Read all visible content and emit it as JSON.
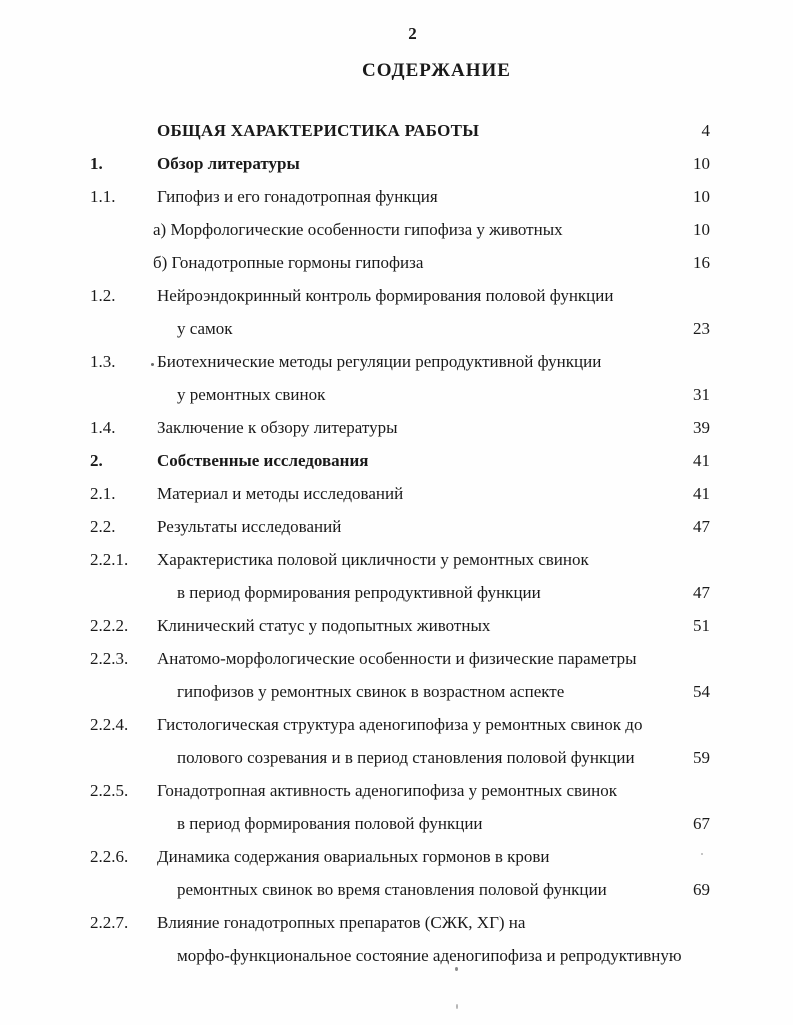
{
  "page": {
    "number": "2",
    "title": "СОДЕРЖАНИЕ"
  },
  "toc": {
    "entries": [
      {
        "num": "",
        "lines": [
          "ОБЩАЯ ХАРАКТЕРИСТИКА РАБОТЫ"
        ],
        "page": "4",
        "style": "caps"
      },
      {
        "num": "1.",
        "lines": [
          "Обзор литературы"
        ],
        "page": "10",
        "style": "bold"
      },
      {
        "num": "1.1.",
        "lines": [
          "Гипофиз и его гонадотропная функция"
        ],
        "page": "10",
        "style": ""
      },
      {
        "num": "",
        "lines": [
          "а) Морфологические особенности гипофиза у животных"
        ],
        "page": "10",
        "style": "sub"
      },
      {
        "num": "",
        "lines": [
          "б) Гонадотропные гормоны гипофиза"
        ],
        "page": "16",
        "style": "sub"
      },
      {
        "num": "1.2.",
        "lines": [
          "Нейроэндокринный контроль формирования половой функции",
          "у самок"
        ],
        "page": "23",
        "style": ""
      },
      {
        "num": "1.3.",
        "lines": [
          "Биотехнические методы регуляции репродуктивной функции",
          "у ремонтных свинок"
        ],
        "page": "31",
        "style": ""
      },
      {
        "num": "1.4.",
        "lines": [
          "Заключение к обзору литературы"
        ],
        "page": "39",
        "style": ""
      },
      {
        "num": "2.",
        "lines": [
          "Собственные исследования"
        ],
        "page": "41",
        "style": "bold"
      },
      {
        "num": "2.1.",
        "lines": [
          "Материал и методы исследований"
        ],
        "page": "41",
        "style": ""
      },
      {
        "num": "2.2.",
        "lines": [
          "Результаты исследований"
        ],
        "page": "47",
        "style": ""
      },
      {
        "num": "2.2.1.",
        "lines": [
          "Характеристика половой цикличности у ремонтных свинок",
          "в период формирования репродуктивной функции"
        ],
        "page": "47",
        "style": ""
      },
      {
        "num": "2.2.2.",
        "lines": [
          "Клинический статус у подопытных животных"
        ],
        "page": "51",
        "style": ""
      },
      {
        "num": "2.2.3.",
        "lines": [
          "Анатомо-морфологические особенности и физические параметры",
          "гипофизов у ремонтных свинок в возрастном аспекте"
        ],
        "page": "54",
        "style": ""
      },
      {
        "num": "2.2.4.",
        "lines": [
          "Гистологическая структура аденогипофиза у ремонтных свинок до",
          "полового созревания и в период становления половой функции"
        ],
        "page": "59",
        "style": ""
      },
      {
        "num": "2.2.5.",
        "lines": [
          "Гонадотропная активность аденогипофиза у ремонтных свинок",
          "в период формирования половой функции"
        ],
        "page": "67",
        "style": ""
      },
      {
        "num": "2.2.6.",
        "lines": [
          "Динамика содержания овариальных гормонов в крови",
          "ремонтных свинок во время становления половой функции"
        ],
        "page": "69",
        "style": ""
      },
      {
        "num": "2.2.7.",
        "lines": [
          "Влияние гонадотропных препаратов (СЖК, ХГ) на",
          "морфо-функциональное состояние аденогипофиза и репродуктивную"
        ],
        "page": "",
        "style": ""
      }
    ]
  }
}
